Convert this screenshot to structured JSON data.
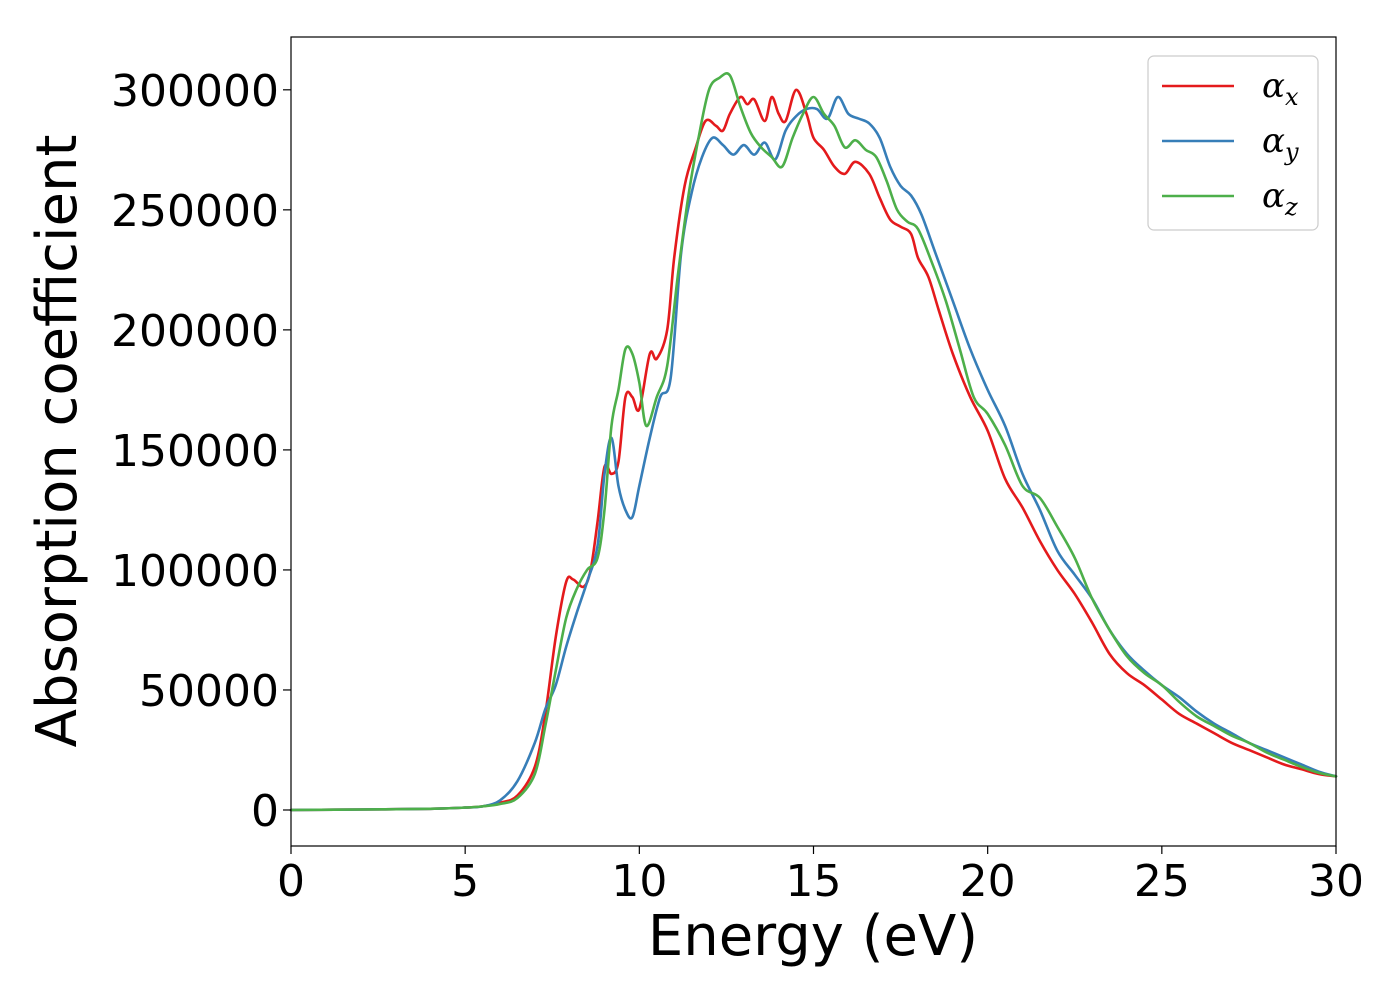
{
  "chart_data": {
    "type": "line",
    "title": "",
    "xlabel": "Energy (eV)",
    "ylabel": "Absorption coefficient",
    "xlim": [
      0,
      30
    ],
    "ylim": [
      -15000,
      322000
    ],
    "xticks": [
      0,
      5,
      10,
      15,
      20,
      25,
      30
    ],
    "yticks": [
      0,
      50000,
      100000,
      150000,
      200000,
      250000,
      300000
    ],
    "grid": false,
    "legend_position": "top-right",
    "series": [
      {
        "name": "α",
        "name_sub": "x",
        "color": "#e41a1c",
        "x": [
          0,
          2,
          4,
          5,
          5.5,
          6,
          6.5,
          7,
          7.3,
          7.6,
          7.9,
          8.1,
          8.4,
          8.6,
          8.8,
          9.0,
          9.2,
          9.4,
          9.6,
          9.8,
          10.0,
          10.3,
          10.5,
          10.8,
          11.0,
          11.3,
          11.6,
          11.9,
          12.2,
          12.4,
          12.6,
          12.9,
          13.1,
          13.3,
          13.6,
          13.8,
          14.0,
          14.2,
          14.5,
          14.8,
          15.0,
          15.3,
          15.6,
          15.9,
          16.2,
          16.6,
          16.9,
          17.2,
          17.5,
          17.8,
          18.0,
          18.3,
          18.6,
          19.0,
          19.5,
          20.0,
          20.5,
          21.0,
          21.5,
          22.0,
          22.5,
          23.0,
          23.5,
          24.0,
          24.5,
          25.0,
          25.5,
          26.0,
          26.5,
          27.0,
          27.5,
          28.0,
          28.5,
          29.0,
          29.5,
          30.0
        ],
        "y": [
          0,
          200,
          500,
          1000,
          1500,
          3000,
          6000,
          18000,
          40000,
          72000,
          95000,
          96000,
          93000,
          100000,
          120000,
          143000,
          140000,
          145000,
          172000,
          172000,
          167000,
          190000,
          188000,
          200000,
          230000,
          260000,
          275000,
          287000,
          285000,
          283000,
          290000,
          297000,
          294000,
          296000,
          287000,
          297000,
          290000,
          287000,
          300000,
          290000,
          280000,
          275000,
          268000,
          265000,
          270000,
          265000,
          255000,
          246000,
          243000,
          240000,
          230000,
          222000,
          208000,
          190000,
          172000,
          158000,
          138000,
          126000,
          112000,
          100000,
          90000,
          78000,
          65000,
          57000,
          52000,
          46000,
          40000,
          36000,
          32000,
          28000,
          25000,
          22000,
          19000,
          17000,
          15000,
          14000
        ]
      },
      {
        "name": "α",
        "name_sub": "y",
        "color": "#377eb8",
        "x": [
          0,
          2,
          4,
          5,
          5.5,
          6,
          6.5,
          7,
          7.3,
          7.6,
          7.9,
          8.2,
          8.5,
          8.8,
          9.0,
          9.2,
          9.4,
          9.6,
          9.8,
          10.0,
          10.3,
          10.6,
          10.9,
          11.2,
          11.5,
          11.8,
          12.1,
          12.4,
          12.7,
          13.0,
          13.3,
          13.6,
          13.9,
          14.2,
          14.5,
          14.8,
          15.1,
          15.4,
          15.7,
          16.0,
          16.3,
          16.6,
          16.9,
          17.2,
          17.5,
          17.8,
          18.1,
          18.5,
          19.0,
          19.5,
          20.0,
          20.5,
          21.0,
          21.5,
          22.0,
          22.5,
          23.0,
          23.5,
          24.0,
          24.5,
          25.0,
          25.5,
          26.0,
          26.5,
          27.0,
          27.5,
          28.0,
          28.5,
          29.0,
          29.5,
          30.0
        ],
        "y": [
          0,
          200,
          500,
          1000,
          1500,
          4000,
          12000,
          28000,
          42000,
          52000,
          68000,
          82000,
          95000,
          110000,
          140000,
          155000,
          135000,
          125000,
          122000,
          135000,
          155000,
          172000,
          180000,
          232000,
          257000,
          272000,
          280000,
          277000,
          273000,
          277000,
          273000,
          278000,
          271000,
          283000,
          289000,
          292000,
          292000,
          288000,
          297000,
          290000,
          288000,
          286000,
          280000,
          268000,
          260000,
          256000,
          248000,
          232000,
          212000,
          192000,
          175000,
          160000,
          140000,
          125000,
          108000,
          98000,
          88000,
          75000,
          65000,
          58000,
          52000,
          47000,
          41000,
          36000,
          32000,
          28000,
          25000,
          22000,
          19000,
          16000,
          14000
        ]
      },
      {
        "name": "α",
        "name_sub": "z",
        "color": "#4daf4a",
        "x": [
          0,
          2,
          4,
          5,
          5.5,
          6,
          6.5,
          7,
          7.3,
          7.6,
          7.9,
          8.2,
          8.5,
          8.8,
          9.0,
          9.2,
          9.4,
          9.6,
          9.8,
          10.0,
          10.2,
          10.5,
          10.8,
          11.1,
          11.4,
          11.7,
          12.0,
          12.3,
          12.6,
          12.9,
          13.2,
          13.5,
          13.8,
          14.1,
          14.4,
          14.7,
          15.0,
          15.3,
          15.6,
          15.9,
          16.2,
          16.5,
          16.8,
          17.1,
          17.4,
          17.7,
          18.0,
          18.4,
          18.8,
          19.2,
          19.6,
          20.0,
          20.5,
          21.0,
          21.5,
          22.0,
          22.5,
          23.0,
          23.5,
          24.0,
          24.5,
          25.0,
          25.5,
          26.0,
          26.5,
          27.0,
          27.5,
          28.0,
          28.5,
          29.0,
          29.5,
          30.0
        ],
        "y": [
          0,
          200,
          500,
          1000,
          1500,
          2500,
          5000,
          15000,
          35000,
          58000,
          80000,
          92000,
          100000,
          105000,
          125000,
          160000,
          175000,
          192000,
          190000,
          178000,
          160000,
          172000,
          185000,
          222000,
          255000,
          280000,
          300000,
          305000,
          306000,
          293000,
          282000,
          276000,
          272000,
          268000,
          280000,
          290000,
          297000,
          290000,
          285000,
          276000,
          279000,
          275000,
          272000,
          262000,
          250000,
          245000,
          242000,
          228000,
          212000,
          192000,
          172000,
          165000,
          152000,
          135000,
          130000,
          118000,
          105000,
          88000,
          75000,
          64000,
          57000,
          52000,
          45000,
          39000,
          35000,
          31000,
          28000,
          24000,
          21000,
          18000,
          15500,
          14000
        ]
      }
    ]
  }
}
